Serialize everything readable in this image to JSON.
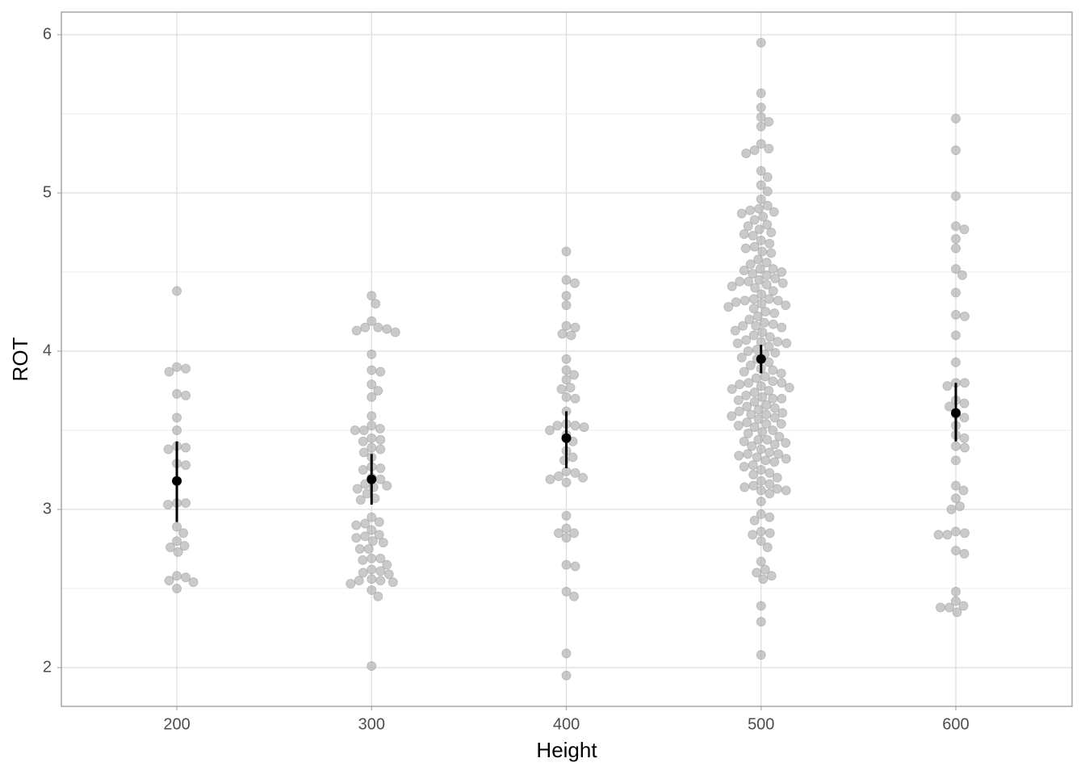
{
  "chart_data": {
    "type": "beeswarm",
    "xlabel": "Height",
    "ylabel": "ROT",
    "xlim": [
      140.7,
      659.7
    ],
    "xticks": [
      200,
      300,
      400,
      500,
      600
    ],
    "ylim": [
      1.755,
      6.143
    ],
    "yticks": [
      2,
      3,
      4,
      5,
      6
    ],
    "minor_yticks": [
      2.5,
      3.5,
      4.5,
      5.5
    ],
    "grid": true,
    "point_color": "#a6a6a6",
    "summary_color": "#000000",
    "groups": [
      {
        "x": 200,
        "values": [
          4.38,
          3.9,
          3.87,
          3.89,
          3.72,
          3.73,
          3.58,
          3.5,
          3.39,
          3.38,
          3.4,
          3.28,
          3.29,
          3.04,
          3.03,
          3.04,
          2.89,
          2.85,
          2.77,
          2.76,
          2.8,
          2.73,
          2.58,
          2.57,
          2.54,
          2.55,
          2.5
        ]
      },
      {
        "x": 300,
        "values": [
          4.35,
          4.3,
          4.19,
          4.15,
          4.14,
          4.13,
          4.12,
          4.15,
          3.98,
          3.87,
          3.88,
          3.79,
          3.75,
          3.71,
          3.59,
          3.53,
          3.51,
          3.5,
          3.5,
          3.44,
          3.45,
          3.43,
          3.38,
          3.39,
          3.36,
          3.33,
          3.27,
          3.26,
          3.25,
          3.2,
          3.19,
          3.14,
          3.13,
          3.15,
          3.16,
          3.1,
          3.07,
          3.06,
          2.95,
          2.91,
          2.92,
          2.9,
          2.87,
          2.83,
          2.84,
          2.82,
          2.8,
          2.79,
          2.75,
          2.75,
          2.69,
          2.69,
          2.68,
          2.65,
          2.62,
          2.61,
          2.6,
          2.59,
          2.55,
          2.56,
          2.55,
          2.53,
          2.54,
          2.49,
          2.45,
          2.01
        ]
      },
      {
        "x": 400,
        "values": [
          4.63,
          4.45,
          4.43,
          4.35,
          4.29,
          4.16,
          4.15,
          4.11,
          4.1,
          3.95,
          3.88,
          3.85,
          3.82,
          3.77,
          3.76,
          3.71,
          3.7,
          3.62,
          3.54,
          3.53,
          3.53,
          3.52,
          3.5,
          3.47,
          3.43,
          3.37,
          3.33,
          3.31,
          3.24,
          3.23,
          3.21,
          3.2,
          3.19,
          3.17,
          2.96,
          2.88,
          2.85,
          2.85,
          2.82,
          2.65,
          2.64,
          2.48,
          2.45,
          2.09,
          1.95
        ]
      },
      {
        "x": 500,
        "values": [
          5.95,
          5.63,
          5.54,
          5.48,
          5.45,
          5.42,
          5.31,
          5.28,
          5.27,
          5.25,
          5.14,
          5.1,
          5.05,
          5.01,
          4.96,
          4.92,
          4.9,
          4.89,
          4.88,
          4.87,
          4.85,
          4.83,
          4.8,
          4.79,
          4.77,
          4.75,
          4.74,
          4.73,
          4.7,
          4.68,
          4.66,
          4.65,
          4.63,
          4.62,
          4.58,
          4.56,
          4.55,
          4.52,
          4.52,
          4.51,
          4.5,
          4.49,
          4.48,
          4.46,
          4.45,
          4.44,
          4.44,
          4.43,
          4.42,
          4.41,
          4.4,
          4.38,
          4.36,
          4.33,
          4.33,
          4.32,
          4.32,
          4.31,
          4.3,
          4.29,
          4.28,
          4.27,
          4.25,
          4.24,
          4.22,
          4.2,
          4.18,
          4.17,
          4.16,
          4.16,
          4.15,
          4.13,
          4.12,
          4.1,
          4.09,
          4.07,
          4.06,
          4.06,
          4.05,
          4.05,
          4.03,
          4.01,
          4.0,
          3.99,
          3.98,
          3.96,
          3.95,
          3.93,
          3.91,
          3.89,
          3.88,
          3.87,
          3.86,
          3.84,
          3.83,
          3.81,
          3.8,
          3.8,
          3.79,
          3.78,
          3.77,
          3.76,
          3.75,
          3.74,
          3.72,
          3.71,
          3.7,
          3.7,
          3.69,
          3.68,
          3.66,
          3.65,
          3.64,
          3.63,
          3.62,
          3.61,
          3.6,
          3.6,
          3.59,
          3.58,
          3.57,
          3.55,
          3.54,
          3.54,
          3.53,
          3.52,
          3.5,
          3.49,
          3.48,
          3.46,
          3.44,
          3.44,
          3.43,
          3.42,
          3.41,
          3.4,
          3.38,
          3.36,
          3.35,
          3.35,
          3.34,
          3.33,
          3.32,
          3.31,
          3.3,
          3.28,
          3.27,
          3.25,
          3.23,
          3.22,
          3.2,
          3.18,
          3.16,
          3.15,
          3.14,
          3.13,
          3.12,
          3.12,
          3.1,
          3.05,
          2.97,
          2.95,
          2.93,
          2.86,
          2.85,
          2.84,
          2.8,
          2.76,
          2.67,
          2.62,
          2.6,
          2.58,
          2.56,
          2.39,
          2.29,
          2.08
        ]
      },
      {
        "x": 600,
        "values": [
          5.47,
          5.27,
          4.98,
          4.79,
          4.77,
          4.71,
          4.65,
          4.52,
          4.48,
          4.37,
          4.23,
          4.22,
          4.1,
          3.93,
          3.8,
          3.8,
          3.78,
          3.69,
          3.67,
          3.65,
          3.6,
          3.58,
          3.53,
          3.47,
          3.45,
          3.4,
          3.39,
          3.31,
          3.15,
          3.12,
          3.07,
          3.02,
          3.0,
          2.86,
          2.85,
          2.84,
          2.84,
          2.74,
          2.72,
          2.48,
          2.42,
          2.39,
          2.38,
          2.38,
          2.35
        ]
      }
    ],
    "summary": {
      "means": [
        3.18,
        3.19,
        3.45,
        3.95,
        3.61
      ],
      "lower": [
        2.92,
        3.03,
        3.26,
        3.86,
        3.43
      ],
      "upper": [
        3.43,
        3.35,
        3.62,
        4.04,
        3.8
      ]
    }
  }
}
